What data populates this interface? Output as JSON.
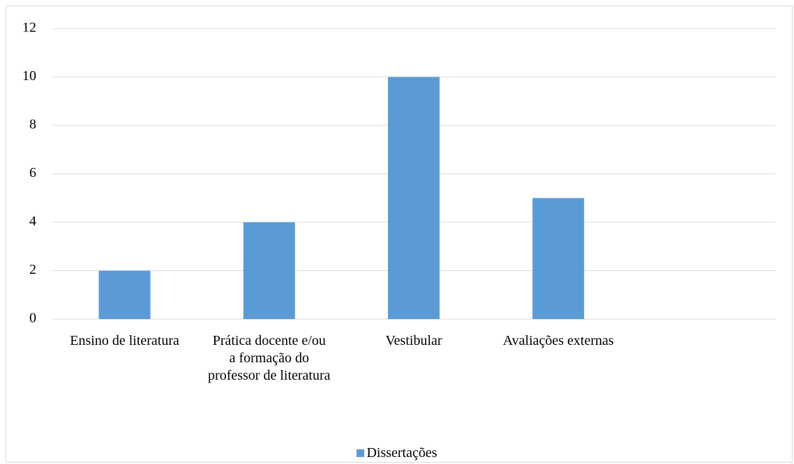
{
  "chart_data": {
    "type": "bar",
    "categories": [
      "Ensino de literatura",
      "Prática docente e/ou a formação do professor de literatura",
      "Vestibular",
      "Avaliações externas",
      null
    ],
    "series": [
      {
        "name": "Dissertações",
        "color": "#5b9bd5",
        "values": [
          2,
          4,
          10,
          5,
          null
        ]
      }
    ],
    "ylim": [
      0,
      12
    ],
    "yticks": [
      0,
      2,
      4,
      6,
      8,
      10,
      12
    ],
    "grid": true,
    "legend": "bottom"
  }
}
